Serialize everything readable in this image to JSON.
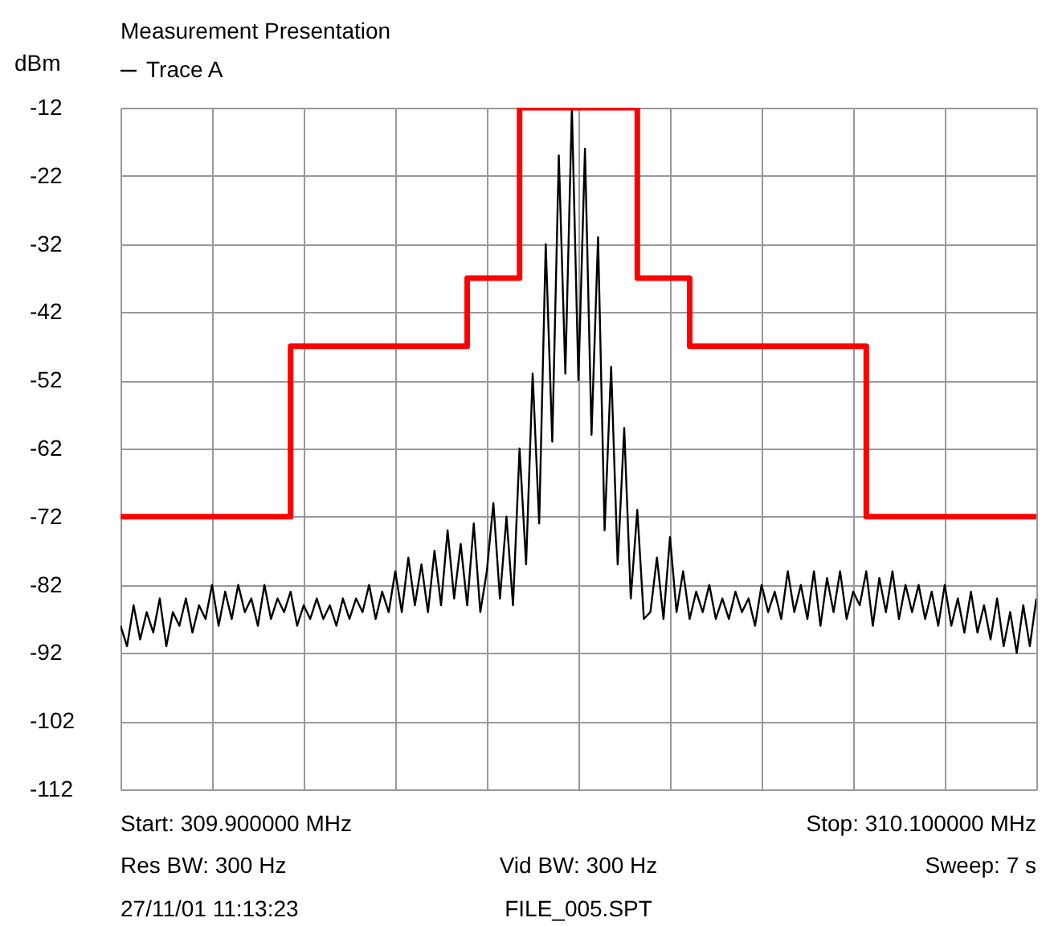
{
  "chart_data": {
    "type": "line",
    "title": "Measurement Presentation",
    "ylabel": "dBm",
    "categories": [
      null,
      null,
      null,
      null,
      null,
      null,
      null,
      null,
      null,
      null,
      null,
      null,
      null,
      null,
      null,
      null,
      null,
      null,
      null,
      null,
      null,
      null,
      null,
      null,
      null,
      null,
      null,
      null,
      null,
      null,
      null,
      null,
      null,
      null,
      null,
      null,
      null,
      null,
      null,
      null,
      null,
      null,
      null,
      null,
      null,
      null,
      null,
      null,
      null,
      null,
      null,
      null,
      null,
      null,
      null,
      null,
      null,
      null,
      null,
      null,
      null,
      null,
      null,
      null,
      null,
      null,
      null,
      null,
      null,
      null,
      null,
      null,
      null,
      null,
      null,
      null,
      null,
      null,
      null,
      null,
      null,
      null,
      null,
      null,
      null,
      null,
      null,
      null,
      null,
      null,
      null,
      null,
      null,
      null,
      null,
      null,
      null,
      null,
      null,
      null,
      null,
      null,
      null,
      null,
      null,
      null,
      null,
      null,
      null,
      null,
      null,
      null,
      null,
      null,
      null,
      null,
      null,
      null,
      null,
      null,
      null,
      null,
      null,
      null,
      null,
      null,
      null,
      null,
      null,
      null,
      null,
      null,
      null,
      null,
      null,
      null,
      null,
      null,
      null,
      null,
      null
    ],
    "ylim": [
      -112,
      -12
    ],
    "yticks": [
      -112,
      -102,
      -92,
      -82,
      -72,
      -62,
      -52,
      -42,
      -32,
      -22,
      -12
    ],
    "tick_labels": "y",
    "grid": true,
    "legend": "top left",
    "line_style": "solid",
    "marker": "none",
    "series": [
      {
        "name": "Trace A",
        "color": "#000000",
        "values": [
          -88,
          -91,
          -85,
          -90,
          -86,
          -89,
          -84,
          -91,
          -86,
          -88,
          -84,
          -89,
          -85,
          -87,
          -82,
          -88,
          -83,
          -87,
          -82,
          -86,
          -84,
          -88,
          -82,
          -87,
          -84,
          -86,
          -83,
          -88,
          -85,
          -87,
          -84,
          -87,
          -85,
          -88,
          -84,
          -87,
          -84,
          -86,
          -82,
          -87,
          -83,
          -86,
          -80,
          -86,
          -78,
          -85,
          -79,
          -86,
          -77,
          -85,
          -74,
          -84,
          -76,
          -85,
          -73,
          -86,
          -80,
          -70,
          -84,
          -72,
          -85,
          -62,
          -79,
          -51,
          -73,
          -32,
          -61,
          -19,
          -51,
          -12,
          -52,
          -18,
          -60,
          -31,
          -74,
          -50,
          -79,
          -59,
          -84,
          -71,
          -87,
          -86,
          -78,
          -87,
          -75,
          -86,
          -80,
          -87,
          -83,
          -86,
          -82,
          -87,
          -84,
          -87,
          -83,
          -86,
          -84,
          -88,
          -82,
          -86,
          -83,
          -87,
          -80,
          -86,
          -82,
          -87,
          -80,
          -88,
          -81,
          -86,
          -80,
          -87,
          -83,
          -85,
          -80,
          -88,
          -81,
          -86,
          -80,
          -87,
          -82,
          -86,
          -82,
          -87,
          -83,
          -88,
          -82,
          -88,
          -84,
          -89,
          -83,
          -89,
          -85,
          -90,
          -84,
          -91,
          -86,
          -92,
          -85,
          -91,
          -84
        ]
      },
      {
        "type": "step",
        "color": "#ff0000",
        "values": [
          -72,
          -72,
          -72,
          -72,
          -72,
          -72,
          -72,
          -72,
          -72,
          -72,
          -72,
          -72,
          -72,
          -72,
          -72,
          -72,
          -72,
          -72,
          -72,
          -72,
          -72,
          -72,
          -72,
          -72,
          -72,
          -72,
          -47,
          -47,
          -47,
          -47,
          -47,
          -47,
          -47,
          -47,
          -47,
          -47,
          -47,
          -47,
          -47,
          -47,
          -47,
          -47,
          -47,
          -47,
          -47,
          -47,
          -47,
          -47,
          -47,
          -47,
          -47,
          -47,
          -47,
          -37,
          -37,
          -37,
          -37,
          -37,
          -37,
          -37,
          -37,
          -12,
          -12,
          -12,
          -12,
          -12,
          -12,
          -12,
          -12,
          -12,
          -12,
          -12,
          -12,
          -12,
          -12,
          -12,
          -12,
          -12,
          -12,
          -37,
          -37,
          -37,
          -37,
          -37,
          -37,
          -37,
          -37,
          -47,
          -47,
          -47,
          -47,
          -47,
          -47,
          -47,
          -47,
          -47,
          -47,
          -47,
          -47,
          -47,
          -47,
          -47,
          -47,
          -47,
          -47,
          -47,
          -47,
          -47,
          -47,
          -47,
          -47,
          -47,
          -47,
          -47,
          -72,
          -72,
          -72,
          -72,
          -72,
          -72,
          -72,
          -72,
          -72,
          -72,
          -72,
          -72,
          -72,
          -72,
          -72,
          -72,
          -72,
          -72,
          -72,
          -72,
          -72,
          -72,
          -72,
          -72,
          -72,
          -72,
          -72
        ]
      }
    ],
    "annotations": [
      "Start: 309.900000 MHz",
      "Stop: 310.100000 MHz",
      "Res BW: 300 Hz",
      "Vid BW: 300 Hz",
      "Sweep: 7 s",
      "27/11/01 11:13:23",
      "FILE_005.SPT"
    ]
  }
}
